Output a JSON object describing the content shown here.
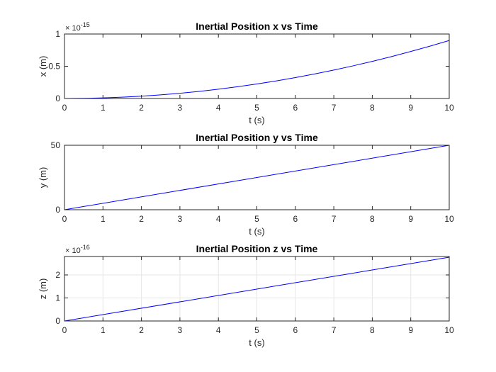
{
  "chart_data": [
    {
      "type": "line",
      "title": "Inertial Position x vs Time",
      "xlabel": "t (s)",
      "ylabel": "x (m)",
      "xlim": [
        0,
        10
      ],
      "ylim": [
        0,
        1
      ],
      "x_ticks": [
        "0",
        "1",
        "2",
        "3",
        "4",
        "5",
        "6",
        "7",
        "8",
        "9",
        "10"
      ],
      "y_ticks": [
        "0",
        "0.5",
        "1"
      ],
      "y_exponent_base": "× 10",
      "y_exponent": "-15",
      "grid": false,
      "line_color": "#0000ff",
      "series": [
        {
          "x": [
            0,
            0.5,
            1,
            1.5,
            2,
            2.5,
            3,
            3.5,
            4,
            4.5,
            5,
            5.5,
            6,
            6.5,
            7,
            7.5,
            8,
            8.5,
            9,
            9.5,
            10
          ],
          "values": [
            0,
            0.00225,
            0.009,
            0.02025,
            0.036,
            0.05625,
            0.081,
            0.11025,
            0.144,
            0.18225,
            0.225,
            0.27225,
            0.324,
            0.38025,
            0.441,
            0.50625,
            0.576,
            0.65025,
            0.729,
            0.81225,
            0.9
          ]
        }
      ]
    },
    {
      "type": "line",
      "title": "Inertial Position y vs Time",
      "xlabel": "t (s)",
      "ylabel": "y (m)",
      "xlim": [
        0,
        10
      ],
      "ylim": [
        0,
        50
      ],
      "x_ticks": [
        "0",
        "1",
        "2",
        "3",
        "4",
        "5",
        "6",
        "7",
        "8",
        "9",
        "10"
      ],
      "y_ticks": [
        "0",
        "50"
      ],
      "grid": false,
      "line_color": "#0000ff",
      "series": [
        {
          "x": [
            0,
            10
          ],
          "values": [
            0,
            50
          ]
        }
      ]
    },
    {
      "type": "line",
      "title": "Inertial Position z vs Time",
      "xlabel": "t (s)",
      "ylabel": "z (m)",
      "xlim": [
        0,
        10
      ],
      "ylim": [
        0,
        2.8
      ],
      "x_ticks": [
        "0",
        "1",
        "2",
        "3",
        "4",
        "5",
        "6",
        "7",
        "8",
        "9",
        "10"
      ],
      "y_ticks": [
        "0",
        "1",
        "2"
      ],
      "y_exponent_base": "× 10",
      "y_exponent": "-16",
      "grid": true,
      "line_color": "#0000ff",
      "series": [
        {
          "x": [
            0,
            10
          ],
          "values": [
            0,
            2.77
          ]
        }
      ]
    }
  ]
}
